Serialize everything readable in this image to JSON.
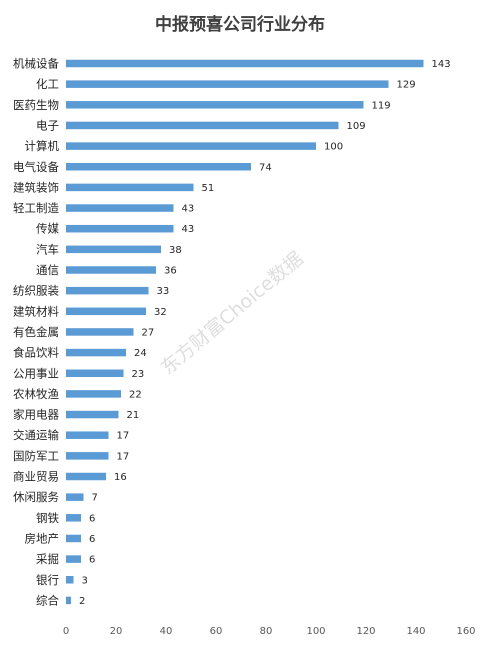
{
  "chart_data": {
    "type": "bar",
    "orientation": "horizontal",
    "title": "中报预喜公司行业分布",
    "categories": [
      "机械设备",
      "化工",
      "医药生物",
      "电子",
      "计算机",
      "电气设备",
      "建筑装饰",
      "轻工制造",
      "传媒",
      "汽车",
      "通信",
      "纺织服装",
      "建筑材料",
      "有色金属",
      "食品饮料",
      "公用事业",
      "农林牧渔",
      "家用电器",
      "交通运输",
      "国防军工",
      "商业贸易",
      "休闲服务",
      "钢铁",
      "房地产",
      "采掘",
      "银行",
      "综合"
    ],
    "values": [
      143,
      129,
      119,
      109,
      100,
      74,
      51,
      43,
      43,
      38,
      36,
      33,
      32,
      27,
      24,
      23,
      22,
      21,
      17,
      17,
      16,
      7,
      6,
      6,
      6,
      3,
      2
    ],
    "xlim": [
      0,
      160
    ],
    "xticks": [
      0,
      20,
      40,
      60,
      80,
      100,
      120,
      140,
      160
    ],
    "bar_color": "#5b9bd5",
    "grid": false,
    "watermark": "东方财富Choice数据"
  }
}
